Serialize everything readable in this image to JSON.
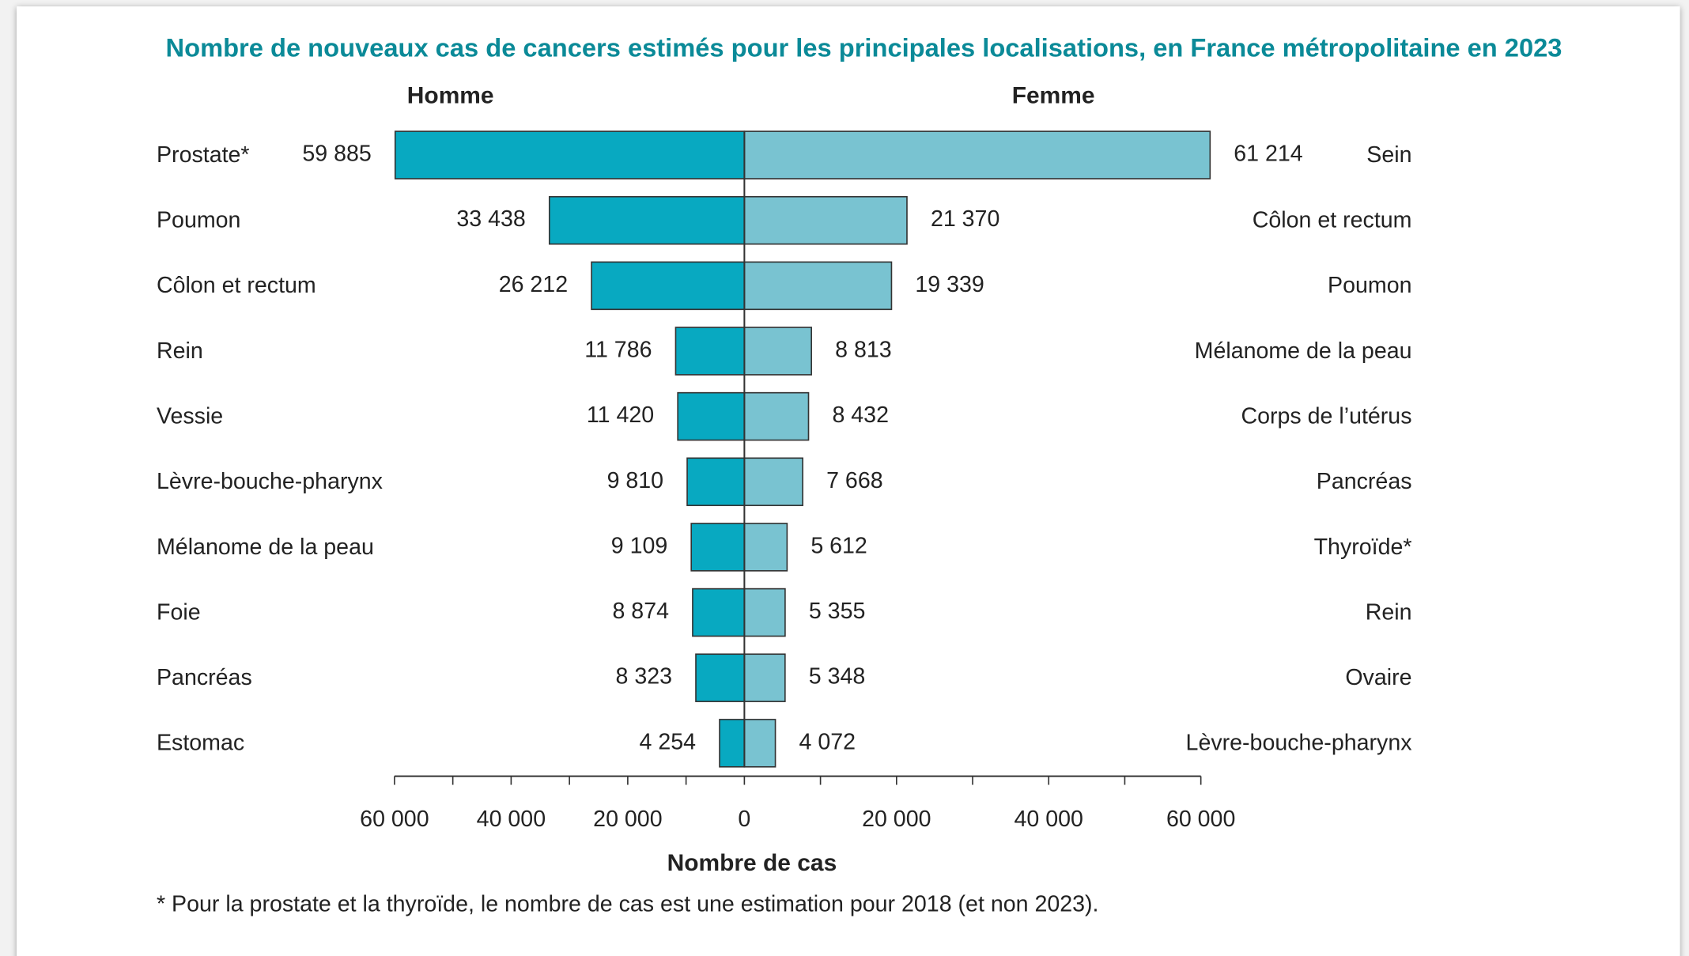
{
  "chart_data": {
    "type": "butterfly",
    "title": "Nombre de nouveaux cas de cancers estimés pour les principales localisations, en France métropolitaine en 2023",
    "x_label": "Nombre de cas",
    "footnote": "* Pour la prostate et la thyroïde, le nombre de cas est une estimation pour 2018 (et non 2023).",
    "series": [
      {
        "name": "Homme",
        "color": "#08a9c1",
        "categories": [
          "Prostate*",
          "Poumon",
          "Côlon et rectum",
          "Rein",
          "Vessie",
          "Lèvre-bouche-pharynx",
          "Mélanome de la peau",
          "Foie",
          "Pancréas",
          "Estomac"
        ],
        "values": [
          59885,
          33438,
          26212,
          11786,
          11420,
          9810,
          9109,
          8874,
          8323,
          4254
        ],
        "value_labels": [
          "59 885",
          "33 438",
          "26 212",
          "11 786",
          "11 420",
          "9 810",
          "9 109",
          "8 874",
          "8 323",
          "4 254"
        ],
        "xlim": [
          0,
          60000
        ],
        "xticks": [
          {
            "value": 0,
            "label": "0"
          },
          {
            "value": 20000,
            "label": "20 000"
          },
          {
            "value": 40000,
            "label": "40 000"
          },
          {
            "value": 60000,
            "label": "60 000"
          }
        ],
        "xticks_minor": [
          10000,
          30000,
          50000
        ]
      },
      {
        "name": "Femme",
        "color": "#79c3d1",
        "categories": [
          "Sein",
          "Côlon et rectum",
          "Poumon",
          "Mélanome de la peau",
          "Corps de l’utérus",
          "Pancréas",
          "Thyroïde*",
          "Rein",
          "Ovaire",
          "Lèvre-bouche-pharynx"
        ],
        "values": [
          61214,
          21370,
          19339,
          8813,
          8432,
          7668,
          5612,
          5355,
          5348,
          4072
        ],
        "value_labels": [
          "61 214",
          "21 370",
          "19 339",
          "8 813",
          "8 432",
          "7 668",
          "5 612",
          "5 355",
          "5 348",
          "4 072"
        ],
        "xlim": [
          0,
          60000
        ],
        "xticks": [
          {
            "value": 20000,
            "label": "20 000"
          },
          {
            "value": 40000,
            "label": "40 000"
          },
          {
            "value": 60000,
            "label": "60 000"
          }
        ],
        "xticks_minor": [
          10000,
          30000,
          50000
        ]
      }
    ]
  }
}
